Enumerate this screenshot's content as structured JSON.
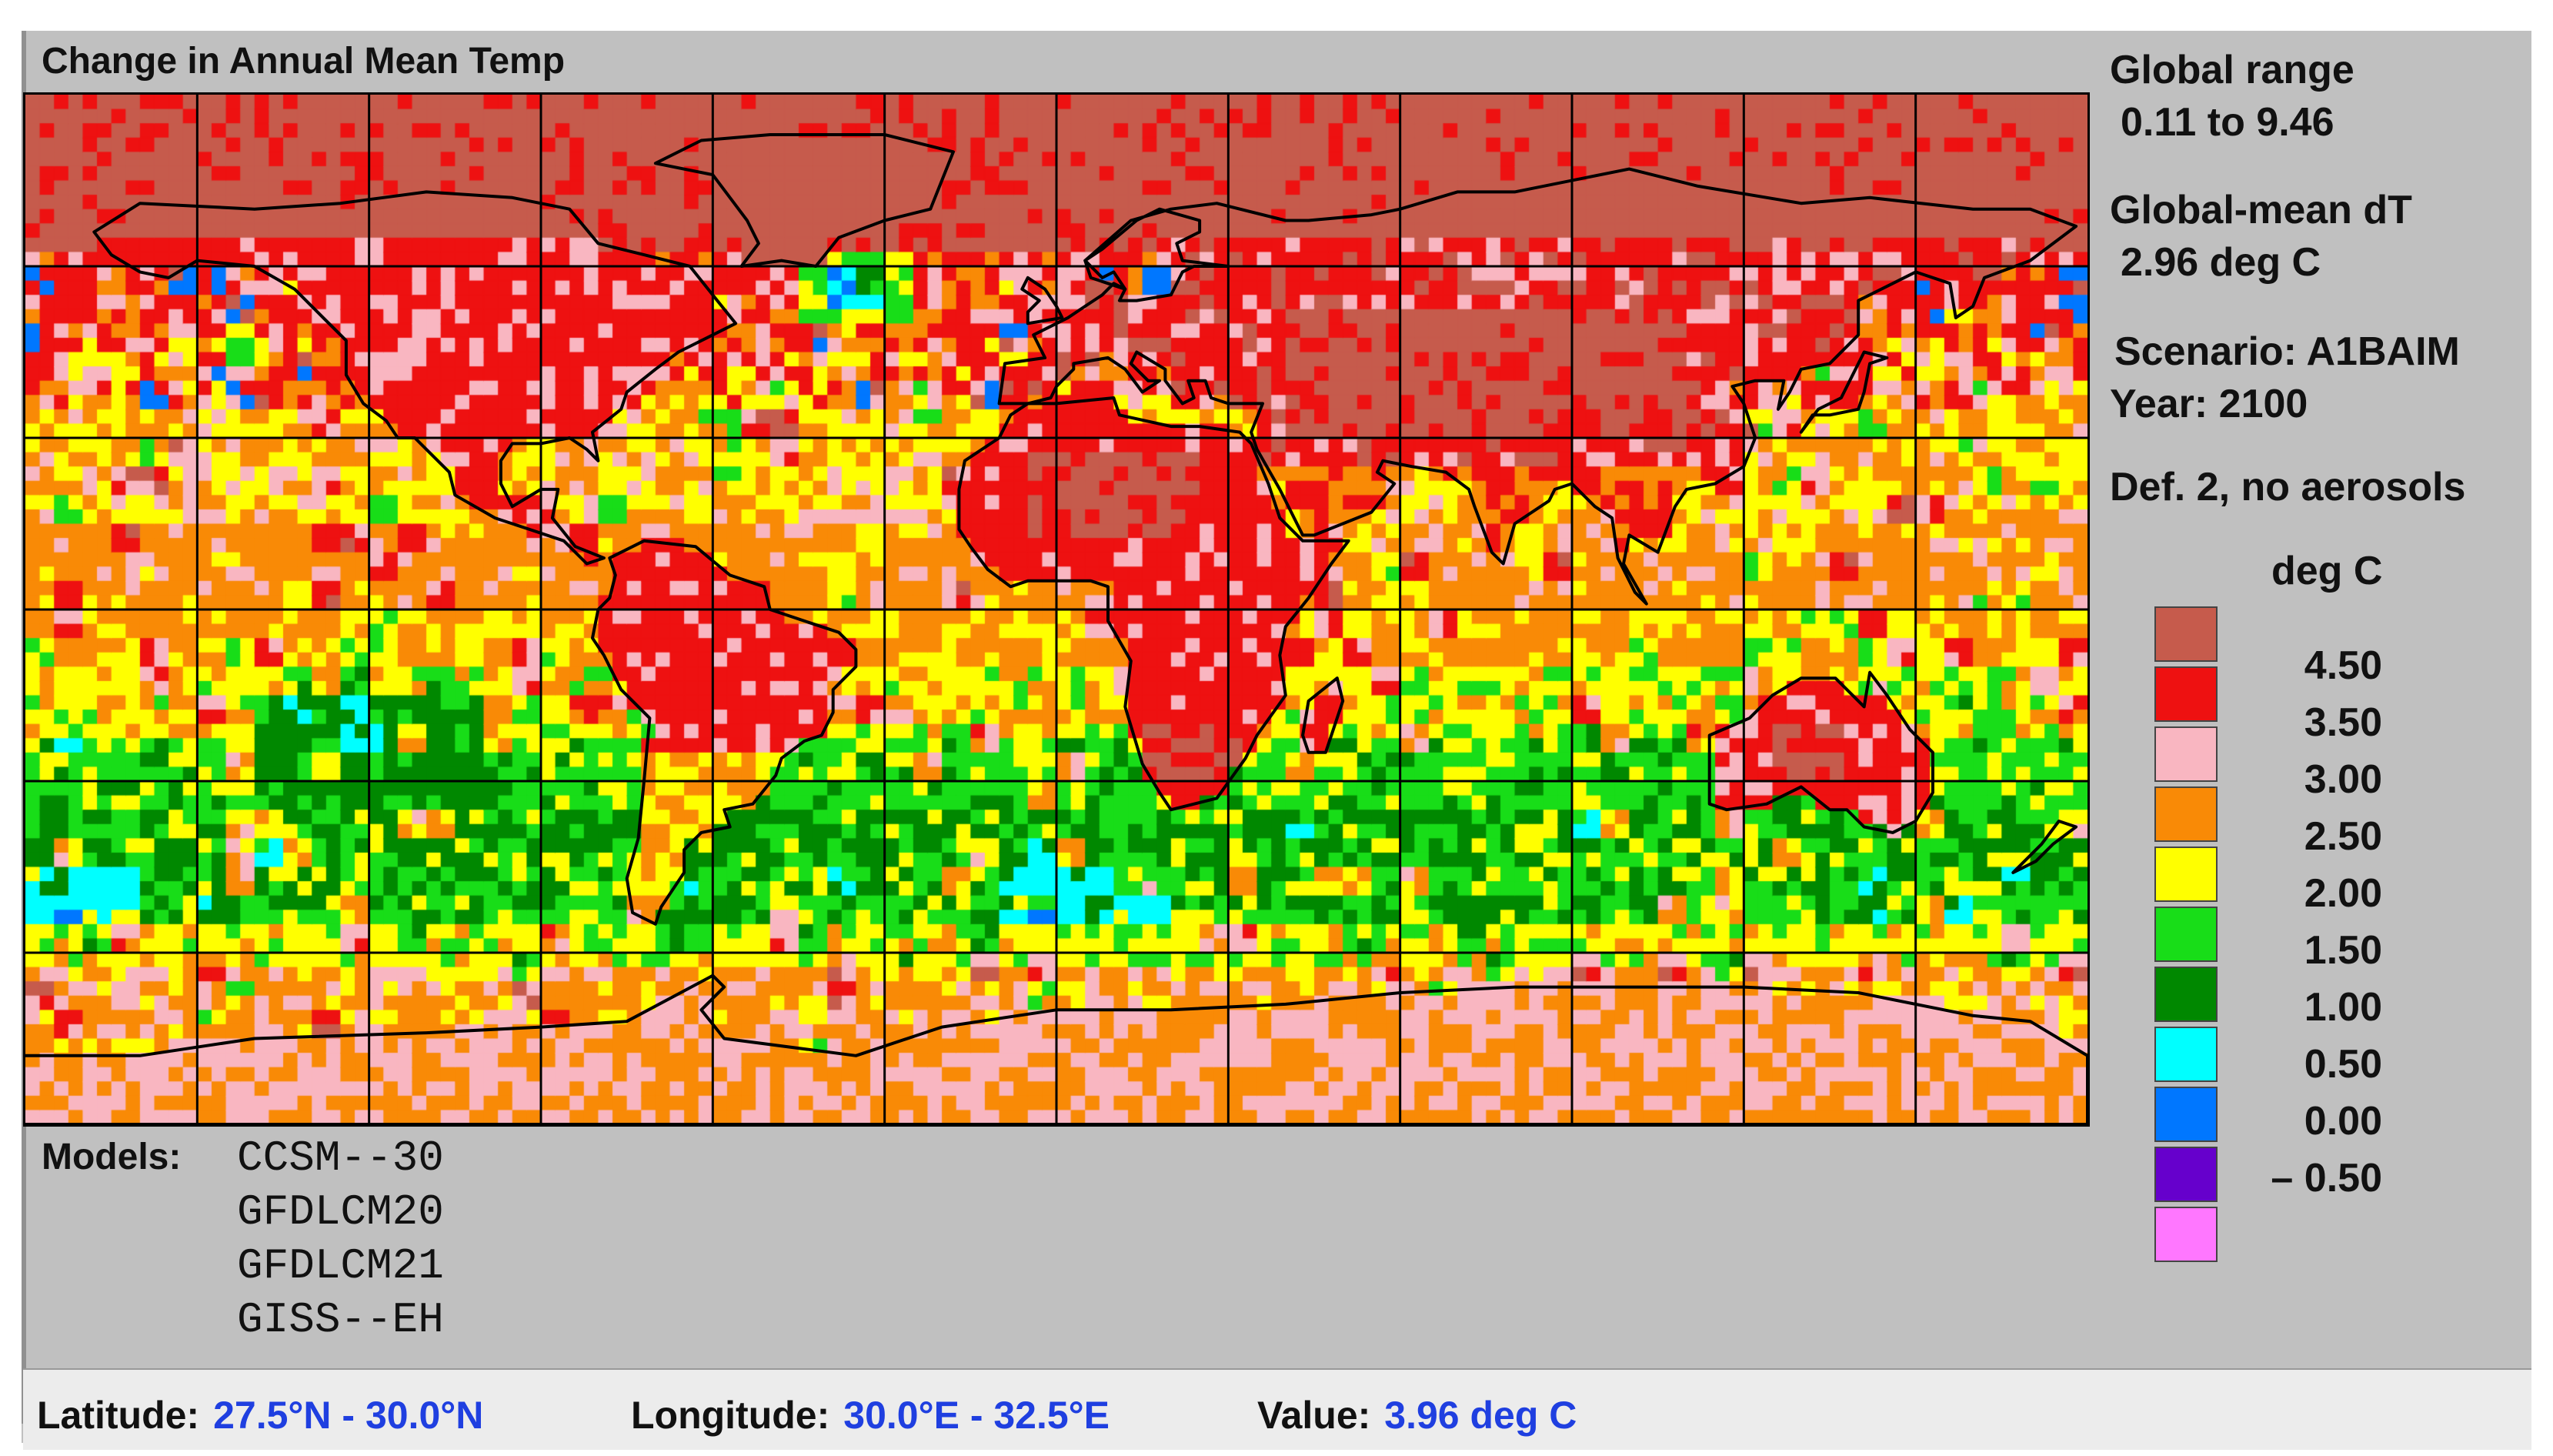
{
  "title": "Change in Annual Mean Temp",
  "info": {
    "global_range_label": "Global range",
    "global_range_value": "0.11 to 9.46",
    "global_mean_label": "Global-mean dT",
    "global_mean_value": "2.96 deg C",
    "scenario": "Scenario: A1BAIM",
    "year": "Year: 2100",
    "definition": "Def. 2, no aerosols"
  },
  "legend": {
    "title": "deg C",
    "ticks": [
      "4.50",
      "3.50",
      "3.00",
      "2.50",
      "2.00",
      "1.50",
      "1.00",
      "0.50",
      "0.00",
      "– 0.50"
    ],
    "colors": [
      "#c65b4c",
      "#ee1111",
      "#f9b6c1",
      "#f98a06",
      "#ffff00",
      "#18dd18",
      "#008800",
      "#00ffff",
      "#0077ff",
      "#6600cc",
      "#ff77ff"
    ]
  },
  "models": {
    "label": "Models:",
    "items": [
      "CCSM--30",
      "GFDLCM20",
      "GFDLCM21",
      "GISS--EH"
    ]
  },
  "status": {
    "latitude_label": "Latitude:",
    "latitude_value": "27.5°N - 30.0°N",
    "longitude_label": "Longitude:",
    "longitude_value": "30.0°E - 32.5°E",
    "value_label": "Value:",
    "value_value": "3.96 deg C"
  }
}
